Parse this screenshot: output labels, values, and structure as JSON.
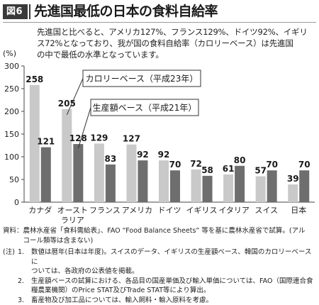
{
  "header": {
    "badge": "図6",
    "title": "先進国最低の日本の食料自給率"
  },
  "intro_lines": [
    "先進国と比べると、アメリカ127%、フランス129%、ドイツ92%、イギリ",
    "ス72%となっており、我が国の食料自給率（カロリーベース）は先進国",
    "の中で最低の水準となっています。"
  ],
  "unit_label": "(%)",
  "colors": {
    "calorie": "#c9c9c9",
    "production": "#6e6e6e",
    "axis": "#444444",
    "grid": "#dddddd"
  },
  "chart_data": {
    "type": "bar",
    "categories": [
      "カナダ",
      "オーストラリア",
      "フランス",
      "アメリカ",
      "ドイツ",
      "イギリス",
      "イタリア",
      "スイス",
      "日本"
    ],
    "category_lines": [
      [
        "カナダ"
      ],
      [
        "オースト",
        "ラリア"
      ],
      [
        "フランス"
      ],
      [
        "アメリカ"
      ],
      [
        "ドイツ"
      ],
      [
        "イギリス"
      ],
      [
        "イタリア"
      ],
      [
        "スイス"
      ],
      [
        "日本"
      ]
    ],
    "series": [
      {
        "name": "カロリーベース（平成23年）",
        "values": [
          258,
          205,
          129,
          127,
          92,
          72,
          61,
          57,
          39
        ]
      },
      {
        "name": "生産額ベース（平成21年）",
        "values": [
          121,
          128,
          83,
          92,
          70,
          58,
          80,
          70,
          70
        ]
      }
    ],
    "ylim": [
      0,
      300
    ],
    "yticks": [
      0,
      50,
      100,
      150,
      200,
      250,
      300
    ],
    "ylabel": "(%)",
    "xlabel": "",
    "grid": false,
    "legend": "callouts near Australia bars"
  },
  "source_lines": [
    "資料：農林水産省「食料需給表」、FAO “Food Balance Sheets” 等を基に農林水産省で試算。(アル",
    "　　　コール類等は含まない)"
  ],
  "notes": [
    {
      "prefix": "(注)",
      "num": "1.",
      "lines": [
        "数値は暦年(日本は年度)。スイスのデータ、イギリスの生産額ベース、韓国のカロリーベースに",
        "ついては、各政府の公表値を掲載。"
      ]
    },
    {
      "prefix": "",
      "num": "2.",
      "lines": [
        "生産額ベースの試算における、各品目の国産単価及び輸入単価については、FAO（国際連合食",
        "糧農業機関）のPrice STAT及びTrade STAT等により算出。"
      ]
    },
    {
      "prefix": "",
      "num": "3.",
      "lines": [
        "畜産物及び加工品については、輸入飼料・輸入原料を考慮。"
      ]
    }
  ]
}
